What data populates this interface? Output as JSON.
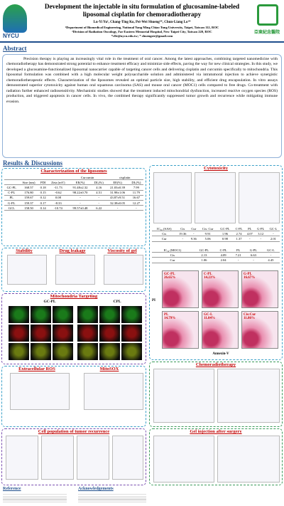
{
  "header": {
    "logo_left": "NYCU",
    "logo_right": "亞東紀念醫院",
    "title": "Development the injectable in situ formulation of glucosamine-labeled liposomal cisplatin for chemoradiotherapy",
    "authors": "Lu-Yi Yu¹, Chang-Ting Ko, Pei-Wei Shueng²*, Chun-Liang Lo¹*",
    "affiliations": [
      "¹Department of Biomedical Engineering, National Yang Ming Chiao Tung University, Taipei, Taiwan 112, ROC",
      "²Division of Radiation Oncology, Far Eastern Memorial Hospital, New Taipei City, Taiwan 220, ROC"
    ],
    "email": "*clle@nycu.edu.tw; * shuengsir@gmail.com"
  },
  "abstract": {
    "heading": "Abstract",
    "text": "Precision therapy is playing an increasingly vital role in the treatment of oral cancer. Among the latest approaches, combining targeted nanomedicine with chemoradiotherapy has demonstrated strong potential to enhance treatment efficacy and minimize side effects, paving the way for new clinical strategies. In this study, we developed a glucosamine-functionalized liposomal nanocarrier capable of targeting cancer cells and delivering cisplatin and curcumin specifically to mitochondria. This liposomal formulation was combined with a high molecular weight polysaccharide solution and administered via intratumoral injection to achieve synergistic chemoradiotherapeutic effects. Characterization of the liposomes revealed an optimal particle size, high stability, and efficient drug encapsulation. In vitro assays demonstrated superior cytotoxicity against human oral squamous carcinoma (SAS) and mouse oral cancer (MOC1) cells compared to free drugs. Co-treatment with radiation further enhanced radiosensitivity. Mechanistic studies showed that the treatment induced mitochondrial dysfunction, increased reactive oxygen species (ROS) production, and triggered apoptosis in cancer cells. In vivo, the combined therapy significantly suppressed tumor growth and recurrence while mitigating immune evasion."
  },
  "results_heading": "Results & Discussions",
  "characterization": {
    "title": "Characterization of the liposomes",
    "group_headers": [
      "Curcumin",
      "cisplatin"
    ],
    "columns": [
      "Size (nm)",
      "PDI",
      "Zeta (mV)",
      "EE(%)",
      "DL(%)",
      "EE(%)",
      "DL(%)"
    ],
    "rows": [
      [
        "GC-PL",
        "168.57",
        "0.18",
        "-11.73",
        "91.48±2.32",
        "4.16",
        "21.03±0.39",
        "7.99"
      ],
      [
        "C-PL",
        "176.80",
        "0.15",
        "-0.62",
        "98.22±0.70",
        "4.51",
        "31.98±1.06",
        "11.79"
      ],
      [
        "PL",
        "159.67",
        "0.12",
        "0.08",
        "-",
        "-",
        "43.87±9.51",
        "16.67"
      ],
      [
        "G-PL",
        "159.37",
        "0.17",
        "-8.33",
        "-",
        "-",
        "32.38±0.05",
        "12.27"
      ],
      [
        "GCL",
        "158.50",
        "0.14",
        "-10.74",
        "99.57±0.48",
        "6.22",
        "-",
        "-"
      ]
    ]
  },
  "panels": {
    "stability": "Stability",
    "drug_leakage": "Drug leakage",
    "viscosity": "Viscosity of gel",
    "mito": "Mitochondria Targeting",
    "mito_left": "GC-PL",
    "mito_right": "CPL",
    "ros": "Extracellular ROS",
    "mitosox": "MitoSOX",
    "population": "Cell population of tumor recurrence",
    "reference": "Reference",
    "acknowledgements": "Acknowledgements",
    "cytotoxicity": "Cytotoxicity",
    "chemo": "Chemoradiotherapy",
    "gel": "Gel injection after surgery"
  },
  "ic50_sas": {
    "label": "IC₅₀ (SAS)",
    "columns": [
      "Cis",
      "Cur",
      "Cis: Cur",
      "GC-PL",
      "C-PL",
      "PL",
      "G-PL",
      "GC-L"
    ],
    "rows": [
      [
        "Cis",
        "19.36",
        "-",
        "9.91",
        "1.96",
        "2.74",
        "4.07",
        "3.12",
        "-"
      ],
      [
        "Cur",
        "-",
        "9.36",
        "5.06",
        "0.98",
        "1.37",
        "-",
        "-",
        "2.01"
      ]
    ]
  },
  "ic50_moc1": {
    "label": "IC₅₀ (MOC1)",
    "columns": [
      "GC-PL",
      "C-PL",
      "PL",
      "G-PL",
      "GC-L"
    ],
    "rows": [
      [
        "Cis",
        "2.13",
        "4.09",
        "7.21",
        "6.63",
        "-"
      ],
      [
        "Cur",
        "1.06",
        "2.04",
        "-",
        "-",
        "4.45"
      ]
    ]
  },
  "flow": {
    "panels": [
      {
        "name": "GC-PL",
        "percent": "26.65%"
      },
      {
        "name": "C-PL",
        "percent": "14.23%"
      },
      {
        "name": "G-PL",
        "percent": "16.67%"
      },
      {
        "name": "PL",
        "percent": "14.79%"
      },
      {
        "name": "GC-L",
        "percent": "11.04%"
      },
      {
        "name": "Cis:Cur",
        "percent": "11.86%"
      }
    ],
    "x_label": "Annexin-V",
    "y_label": "PI"
  }
}
